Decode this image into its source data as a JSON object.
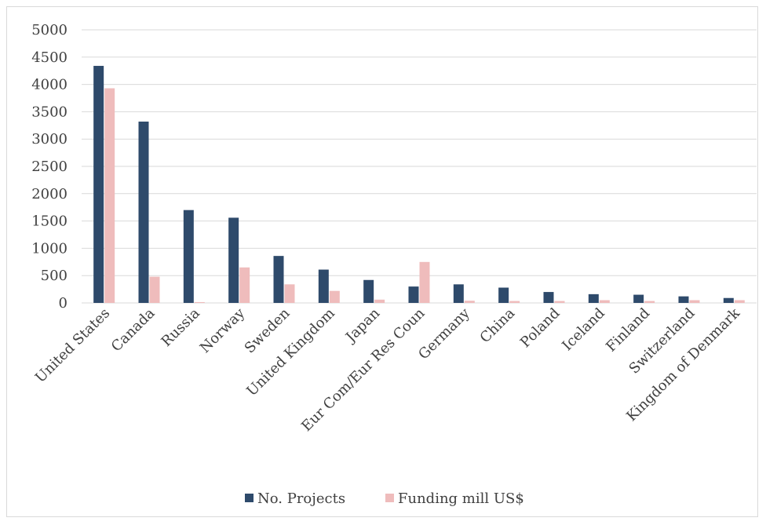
{
  "chart_data": {
    "type": "bar",
    "categories": [
      "United States",
      "Canada",
      "Russia",
      "Norway",
      "Sweden",
      "United Kingdom",
      "Japan",
      "Eur Com/Eur Res Coun",
      "Germany",
      "China",
      "Poland",
      "Iceland",
      "Finland",
      "Switzerland",
      "Kingdom of Denmark"
    ],
    "series": [
      {
        "name": "No. Projects",
        "values": [
          4340,
          3320,
          1700,
          1560,
          860,
          610,
          420,
          300,
          340,
          280,
          200,
          160,
          150,
          120,
          90
        ],
        "color": "#2e4a6b"
      },
      {
        "name": "Funding mill US$",
        "values": [
          3930,
          480,
          15,
          650,
          340,
          220,
          60,
          750,
          40,
          35,
          35,
          50,
          35,
          50,
          50
        ],
        "color": "#efbcbc"
      }
    ],
    "yticks": [
      "0",
      "500",
      "1000",
      "1500",
      "2000",
      "2500",
      "3000",
      "3500",
      "4000",
      "4500",
      "5000"
    ],
    "ylim": [
      0,
      5000
    ],
    "grid": true,
    "legend": "bottom",
    "title": "",
    "xlabel": "",
    "ylabel": ""
  }
}
